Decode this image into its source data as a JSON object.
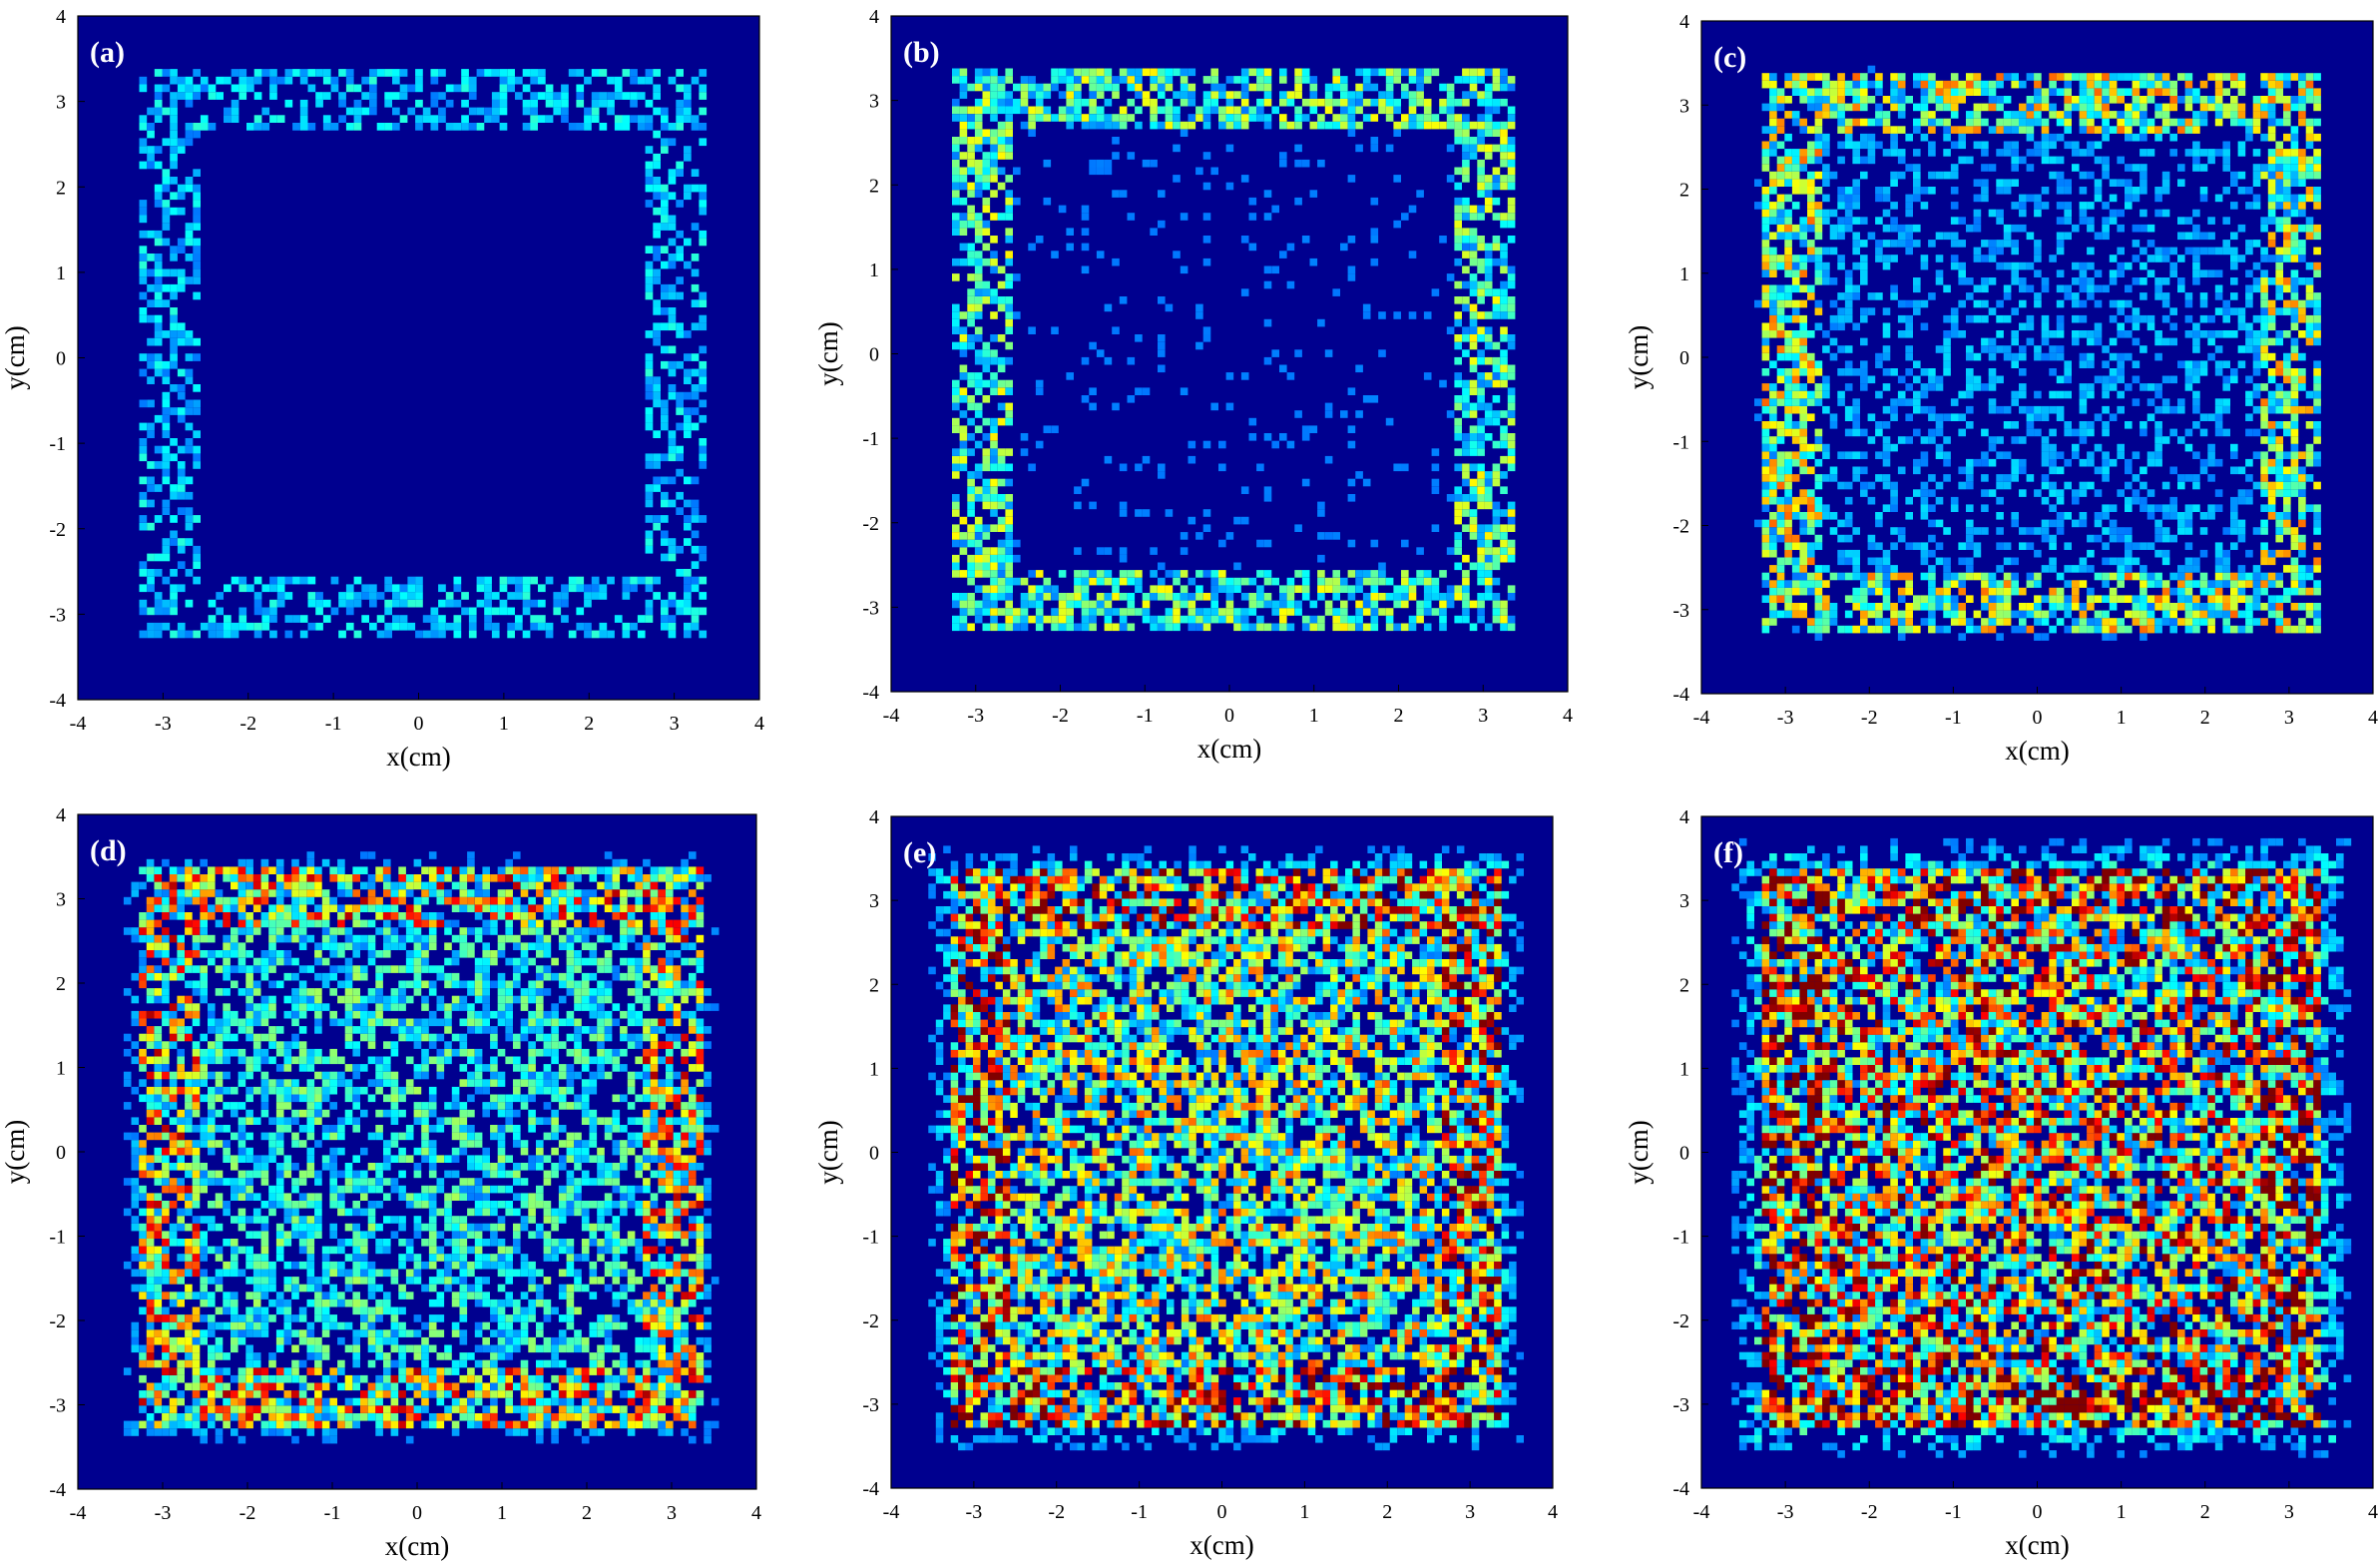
{
  "chart_data": [
    {
      "type": "heatmap",
      "panel_label": "(a)",
      "intensity": 0.05,
      "xlabel": "x(cm)",
      "ylabel": "y(cm)",
      "xlim": [
        -4,
        4
      ],
      "ylim": [
        -4,
        4
      ],
      "xticks": [
        "-4",
        "-3",
        "-2",
        "-1",
        "0",
        "1",
        "2",
        "3",
        "4"
      ],
      "yticks": [
        "-4",
        "-3",
        "-2",
        "-1",
        "0",
        "1",
        "2",
        "3",
        "4"
      ],
      "square_edge": 3,
      "grid": false
    },
    {
      "type": "heatmap",
      "panel_label": "(b)",
      "intensity": 0.3,
      "xlabel": "x(cm)",
      "ylabel": "y(cm)",
      "xlim": [
        -4,
        4
      ],
      "ylim": [
        -4,
        4
      ],
      "xticks": [
        "-4",
        "-3",
        "-2",
        "-1",
        "0",
        "1",
        "2",
        "3",
        "4"
      ],
      "yticks": [
        "-4",
        "-3",
        "-2",
        "-1",
        "0",
        "1",
        "2",
        "3",
        "4"
      ],
      "square_edge": 3,
      "grid": false
    },
    {
      "type": "heatmap",
      "panel_label": "(c)",
      "intensity": 0.45,
      "xlabel": "x(cm)",
      "ylabel": "y(cm)",
      "xlim": [
        -4,
        4
      ],
      "ylim": [
        -4,
        4
      ],
      "xticks": [
        "-4",
        "-3",
        "-2",
        "-1",
        "0",
        "1",
        "2",
        "3",
        "4"
      ],
      "yticks": [
        "-4",
        "-3",
        "-2",
        "-1",
        "0",
        "1",
        "2",
        "3",
        "4"
      ],
      "square_edge": 3,
      "grid": false
    },
    {
      "type": "heatmap",
      "panel_label": "(d)",
      "intensity": 0.65,
      "xlabel": "x(cm)",
      "ylabel": "y(cm)",
      "xlim": [
        -4,
        4
      ],
      "ylim": [
        -4,
        4
      ],
      "xticks": [
        "-4",
        "-3",
        "-2",
        "-1",
        "0",
        "1",
        "2",
        "3",
        "4"
      ],
      "yticks": [
        "-4",
        "-3",
        "-2",
        "-1",
        "0",
        "1",
        "2",
        "3",
        "4"
      ],
      "square_edge": 3,
      "grid": false
    },
    {
      "type": "heatmap",
      "panel_label": "(e)",
      "intensity": 0.85,
      "xlabel": "x(cm)",
      "ylabel": "y(cm)",
      "xlim": [
        -4,
        4
      ],
      "ylim": [
        -4,
        4
      ],
      "xticks": [
        "-4",
        "-3",
        "-2",
        "-1",
        "0",
        "1",
        "2",
        "3",
        "4"
      ],
      "yticks": [
        "-4",
        "-3",
        "-2",
        "-1",
        "0",
        "1",
        "2",
        "3",
        "4"
      ],
      "square_edge": 3,
      "grid": false
    },
    {
      "type": "heatmap",
      "panel_label": "(f)",
      "intensity": 1.0,
      "xlabel": "x(cm)",
      "ylabel": "y(cm)",
      "xlim": [
        -4,
        4
      ],
      "ylim": [
        -4,
        4
      ],
      "xticks": [
        "-4",
        "-3",
        "-2",
        "-1",
        "0",
        "1",
        "2",
        "3",
        "4"
      ],
      "yticks": [
        "-4",
        "-3",
        "-2",
        "-1",
        "0",
        "1",
        "2",
        "3",
        "4"
      ],
      "square_edge": 3,
      "grid": false
    }
  ],
  "colors": {
    "background_field": "#00008f",
    "colormap": "jet"
  }
}
